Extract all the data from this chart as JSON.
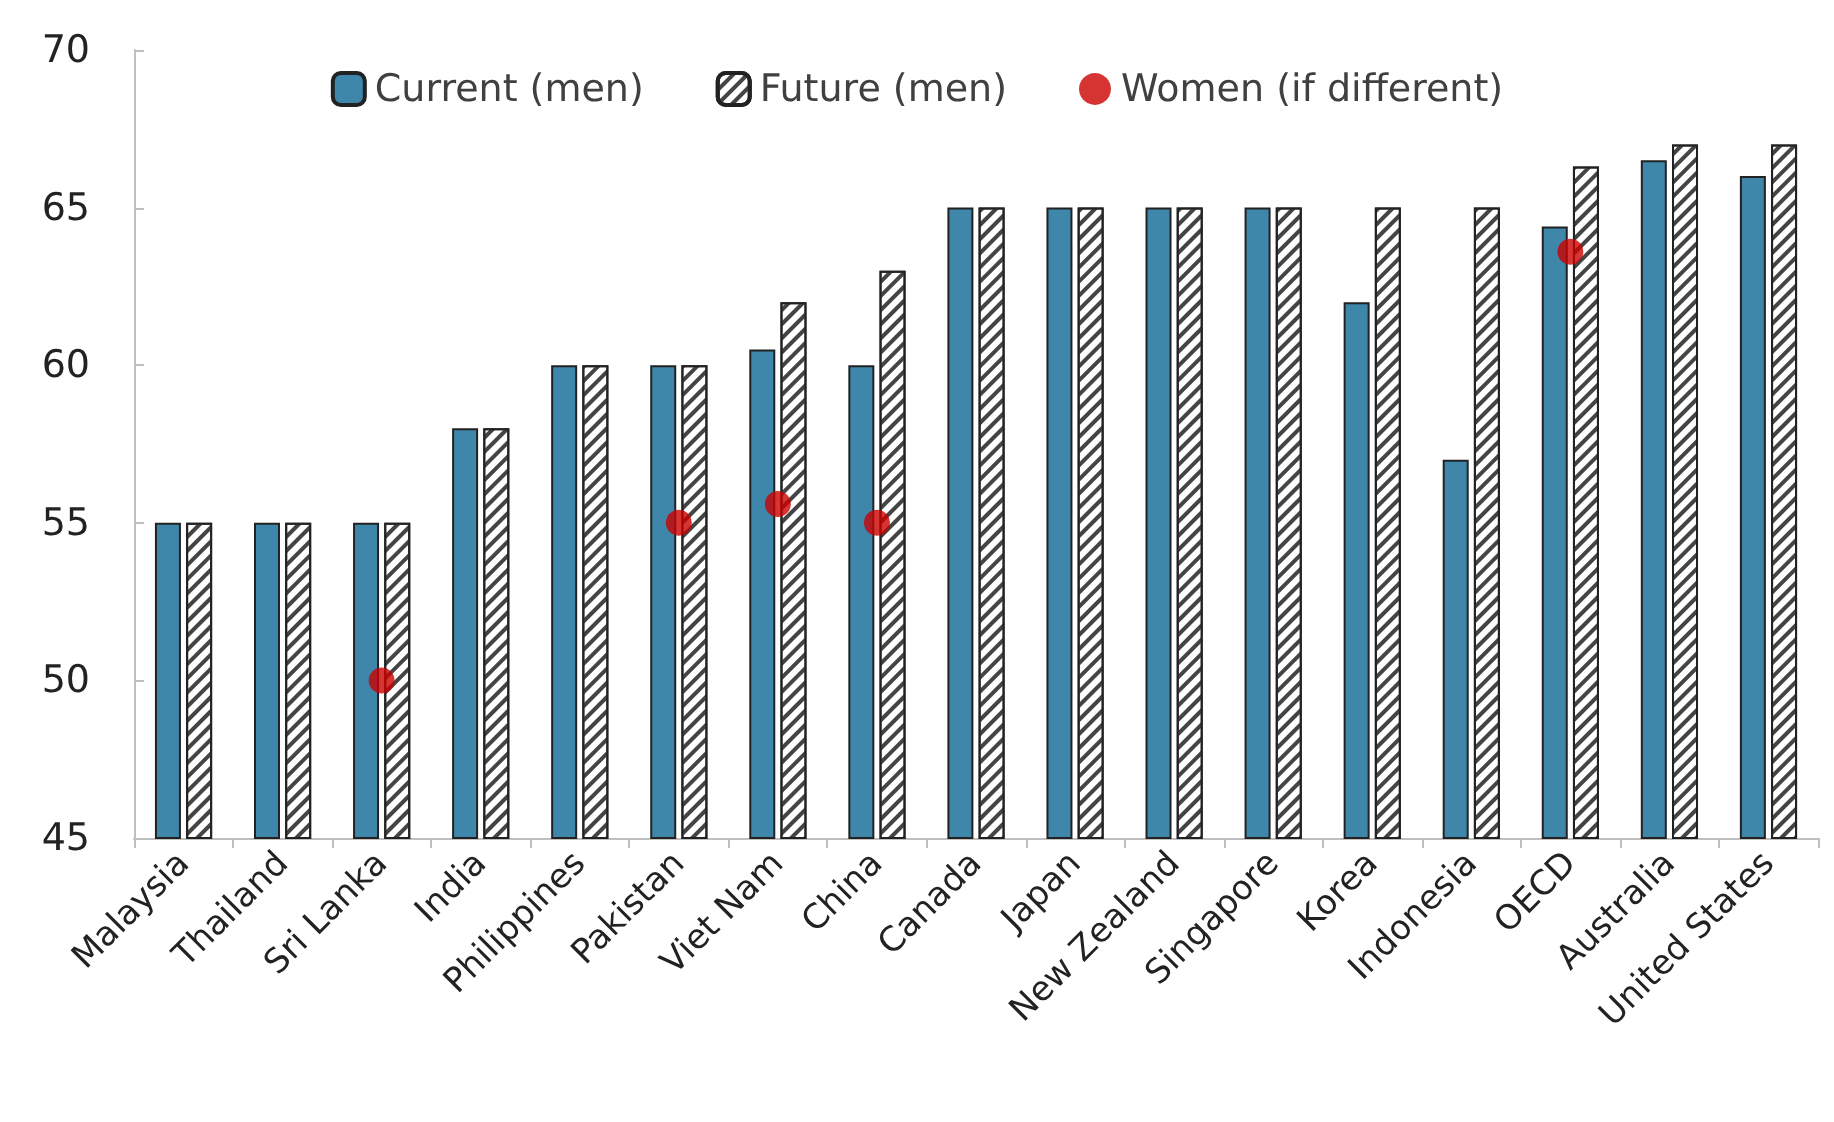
{
  "chart_data": {
    "type": "bar",
    "categories": [
      "Malaysia",
      "Thailand",
      "Sri Lanka",
      "India",
      "Philippines",
      "Pakistan",
      "Viet Nam",
      "China",
      "Canada",
      "Japan",
      "New Zealand",
      "Singapore",
      "Korea",
      "Indonesia",
      "OECD",
      "Australia",
      "United States"
    ],
    "series": [
      {
        "name": "Current (men)",
        "color": "#3f86ab",
        "values": [
          55,
          55,
          55,
          58,
          60,
          60,
          60.5,
          60,
          65,
          65,
          65,
          65,
          62,
          57,
          64.4,
          66.5,
          66
        ]
      },
      {
        "name": "Future (men)",
        "color": "#ffffff",
        "values": [
          55,
          55,
          55,
          58,
          60,
          60,
          62,
          63,
          65,
          65,
          65,
          65,
          65,
          65,
          66.3,
          67,
          67
        ]
      },
      {
        "name": "Women (if different)",
        "type": "scatter",
        "color": "#cc0000",
        "x": [
          "Sri Lanka",
          "Pakistan",
          "Viet Nam",
          "China",
          "OECD"
        ],
        "values": [
          50,
          55,
          55.6,
          55,
          63.6
        ]
      }
    ],
    "ylim": [
      45,
      70
    ],
    "yticks": [
      45,
      50,
      55,
      60,
      65,
      70
    ],
    "grid": false,
    "legend": "top",
    "marker": "circle"
  }
}
